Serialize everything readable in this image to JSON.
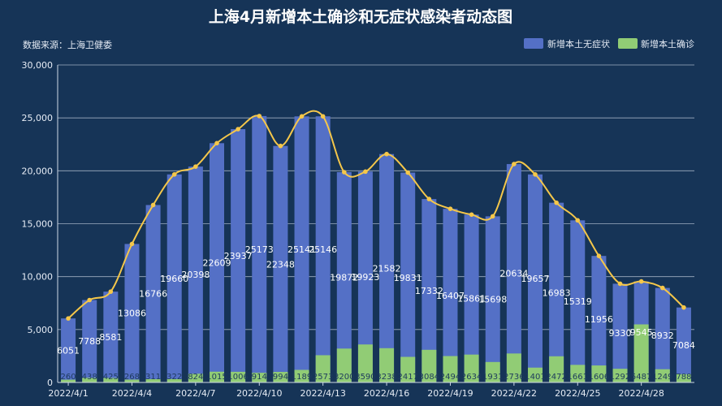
{
  "title": "上海4月新增本土确诊和无症状感染者动态图",
  "source": "数据来源：上海卫健委",
  "colors": {
    "background": "#163457",
    "asymptomatic": "#5470c6",
    "confirmed": "#91cc75",
    "line": "#f5c74a",
    "grid": "#cdd7e6",
    "text": "#e6ecf5"
  },
  "chart_data": {
    "type": "bar",
    "title": "上海4月新增本土确诊和无症状感染者动态图",
    "categories": [
      "2022/4/1",
      "2022/4/2",
      "2022/4/3",
      "2022/4/4",
      "2022/4/5",
      "2022/4/6",
      "2022/4/7",
      "2022/4/8",
      "2022/4/9",
      "2022/4/10",
      "2022/4/11",
      "2022/4/12",
      "2022/4/13",
      "2022/4/14",
      "2022/4/15",
      "2022/4/16",
      "2022/4/17",
      "2022/4/18",
      "2022/4/19",
      "2022/4/20",
      "2022/4/21",
      "2022/4/22",
      "2022/4/23",
      "2022/4/24",
      "2022/4/25",
      "2022/4/26",
      "2022/4/27",
      "2022/4/28",
      "2022/4/29",
      "2022/4/30"
    ],
    "x_tick_labels": [
      "2022/4/1",
      "2022/4/4",
      "2022/4/7",
      "2022/4/10",
      "2022/4/13",
      "2022/4/16",
      "2022/4/19",
      "2022/4/22",
      "2022/4/25",
      "2022/4/28"
    ],
    "series": [
      {
        "name": "新增本土无症状",
        "values": [
          6051,
          7788,
          8581,
          13086,
          16766,
          19660,
          20398,
          22609,
          23937,
          25173,
          22348,
          25141,
          25146,
          19872,
          19923,
          21582,
          19831,
          17332,
          16407,
          15861,
          15698,
          20634,
          19657,
          16983,
          15319,
          11956,
          9330,
          9545,
          8932,
          7084
        ]
      },
      {
        "name": "新增本土确诊",
        "values": [
          260,
          438,
          425,
          268,
          311,
          322,
          824,
          1015,
          1006,
          914,
          994,
          1189,
          2573,
          3200,
          3590,
          3238,
          2417,
          3084,
          2494,
          2634,
          1931,
          2736,
          1401,
          2472,
          1661,
          1606,
          1292,
          5487,
          1249,
          788
        ]
      }
    ],
    "bar_labels": [
      "6051",
      "7788",
      "8581",
      "13086",
      "16766",
      "19660",
      "20398",
      "22609",
      "23937",
      "25173",
      "22348",
      "25141",
      "25146",
      "19872",
      "19923",
      "21582",
      "19831",
      "17332",
      "16407",
      "15861",
      "15698",
      "20634",
      "19657",
      "16983",
      "15319",
      "11956",
      "9330",
      "9545",
      "8932",
      "7084"
    ],
    "confirmed_labels": [
      "260",
      "438",
      "425",
      "268",
      "311",
      "322",
      "824",
      "1015",
      "1006",
      "914",
      "994",
      "1189",
      "2573",
      "3200",
      "3590",
      "3238",
      "2417",
      "3084",
      "2494",
      "2634",
      "1931",
      "2736",
      "1401",
      "2472",
      "1661",
      "1606",
      "1292",
      "5487",
      "1249",
      "788"
    ],
    "line": {
      "values": [
        6051,
        7788,
        8581,
        13086,
        16766,
        19660,
        20398,
        22609,
        23937,
        25173,
        22348,
        25141,
        25146,
        19872,
        19923,
        21582,
        19831,
        17332,
        16407,
        15861,
        15698,
        20634,
        19657,
        16983,
        15319,
        11956,
        9330,
        9545,
        8932,
        7084
      ]
    },
    "yticks": [
      "0",
      "5,000",
      "10,000",
      "15,000",
      "20,000",
      "25,000",
      "30,000"
    ],
    "ylim": [
      0,
      30000
    ],
    "grid": true,
    "legend_position": "top-right"
  }
}
